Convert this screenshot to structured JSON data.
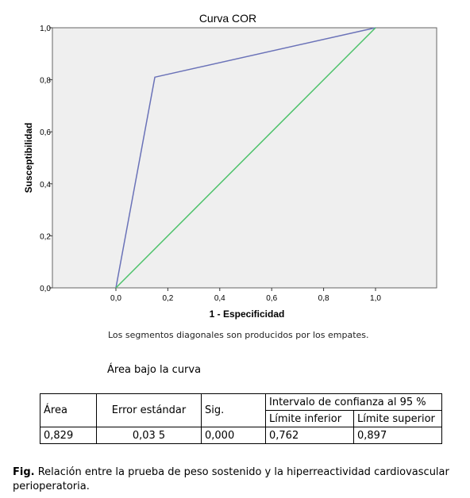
{
  "chart_data": {
    "type": "line",
    "title": "Curva COR",
    "xlabel": "1 - Especificidad",
    "ylabel": "Susceptibilidad",
    "xlim": [
      0,
      1
    ],
    "ylim": [
      0,
      1
    ],
    "x_ticks": [
      "0,0",
      "0,2",
      "0,4",
      "0,6",
      "0,8",
      "1,0"
    ],
    "y_ticks": [
      "0,0",
      "0,2",
      "0,4",
      "0,6",
      "0,8",
      "1,0"
    ],
    "grid": false,
    "series": [
      {
        "color": "#6a72b8",
        "points": [
          [
            0,
            0
          ],
          [
            0.15,
            0.81
          ],
          [
            1,
            1
          ]
        ]
      },
      {
        "color": "#4cc26a",
        "points": [
          [
            0,
            0
          ],
          [
            1,
            1
          ]
        ]
      }
    ],
    "plot_background": "#efefef"
  },
  "footnote": "Los segmentos diagonales son producidos por los empates.",
  "auc_table": {
    "title": "Área bajo la curva",
    "headers": {
      "area": "Área",
      "error": "Error estándar",
      "sig": "Sig.",
      "ci": "Intervalo de confianza al 95 %",
      "lower": "Límite inferior",
      "upper": "Límite superior"
    },
    "row": {
      "area": "0,829",
      "error": "0,03 5",
      "sig": "0,000",
      "lower": "0,762",
      "upper": "0,897"
    }
  },
  "caption": {
    "label": "Fig.",
    "text": " Relación entre la prueba de peso sostenido y la hiperreactividad cardiovascular perioperatoria."
  }
}
